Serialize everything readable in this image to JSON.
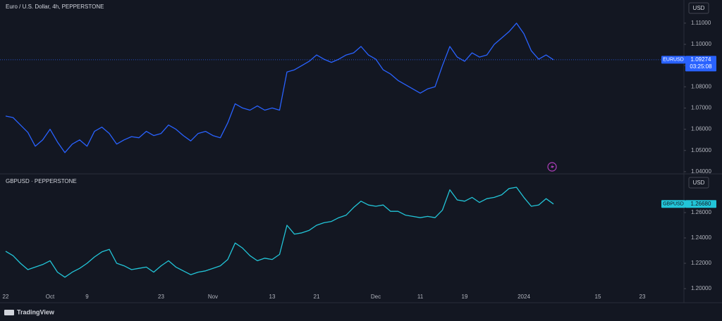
{
  "chart_data": [
    {
      "type": "line",
      "title": "Euro / U.S. Dollar, 4h, PEPPERSTONE",
      "color": "#2962ff",
      "axis_unit": "USD",
      "price_line": true,
      "values": [
        1.0662,
        1.0655,
        1.062,
        1.0585,
        1.052,
        1.055,
        1.06,
        1.054,
        1.049,
        1.053,
        1.055,
        1.052,
        1.059,
        1.061,
        1.058,
        1.053,
        1.055,
        1.0565,
        1.056,
        1.059,
        1.057,
        1.058,
        1.062,
        1.06,
        1.057,
        1.0545,
        1.058,
        1.059,
        1.057,
        1.056,
        1.063,
        1.072,
        1.07,
        1.069,
        1.071,
        1.069,
        1.07,
        1.069,
        1.087,
        1.088,
        1.09,
        1.092,
        1.095,
        1.093,
        1.0915,
        1.093,
        1.095,
        1.096,
        1.099,
        1.095,
        1.093,
        1.088,
        1.086,
        1.083,
        1.081,
        1.079,
        1.077,
        1.079,
        1.08,
        1.09,
        1.099,
        1.094,
        1.092,
        1.096,
        1.094,
        1.095,
        1.1,
        1.103,
        1.106,
        1.11,
        1.105,
        1.097,
        1.093,
        1.095,
        1.09274,
        null,
        null,
        null,
        null,
        null,
        null,
        null,
        null,
        null,
        null,
        null,
        null
      ],
      "ylim": [
        1.0393,
        1.1209
      ],
      "yticks": [
        {
          "value": 1.04,
          "label": "1.04000"
        },
        {
          "value": 1.05,
          "label": "1.05000"
        },
        {
          "value": 1.06,
          "label": "1.06000"
        },
        {
          "value": 1.07,
          "label": "1.07000"
        },
        {
          "value": 1.08,
          "label": "1.08000"
        },
        {
          "value": 1.09,
          "label": "1.09000"
        },
        {
          "value": 1.1,
          "label": "1.10000"
        },
        {
          "value": 1.11,
          "label": "1.11000"
        }
      ],
      "price_tag": {
        "symbol": "EURUSD",
        "value": 1.09274,
        "label": "1.09274",
        "countdown": "03:25:08"
      }
    },
    {
      "type": "line",
      "title": "GBPUSD · PEPPERSTONE",
      "color": "#22c5d8",
      "axis_unit": "USD",
      "price_line": false,
      "categories": [
        "22",
        null,
        null,
        null,
        null,
        null,
        "Oct",
        null,
        null,
        null,
        null,
        "9",
        null,
        null,
        null,
        null,
        null,
        null,
        null,
        null,
        null,
        "23",
        null,
        null,
        null,
        null,
        null,
        null,
        "Nov",
        null,
        null,
        null,
        null,
        null,
        null,
        null,
        "13",
        null,
        null,
        null,
        null,
        null,
        "21",
        null,
        null,
        null,
        null,
        null,
        null,
        null,
        "Dec",
        null,
        null,
        null,
        null,
        null,
        "11",
        null,
        null,
        null,
        null,
        null,
        "19",
        null,
        null,
        null,
        null,
        null,
        null,
        null,
        "2024",
        null,
        null,
        null,
        null,
        null,
        null,
        null,
        null,
        null,
        "15",
        null,
        null,
        null,
        null,
        null,
        "23"
      ],
      "values": [
        1.2295,
        1.226,
        1.22,
        1.215,
        1.217,
        1.219,
        1.222,
        1.213,
        1.209,
        1.213,
        1.216,
        1.22,
        1.225,
        1.229,
        1.231,
        1.22,
        1.218,
        1.215,
        1.216,
        1.217,
        1.213,
        1.218,
        1.222,
        1.217,
        1.214,
        1.211,
        1.213,
        1.214,
        1.216,
        1.218,
        1.223,
        1.236,
        1.232,
        1.226,
        1.222,
        1.224,
        1.223,
        1.227,
        1.25,
        1.243,
        1.244,
        1.246,
        1.25,
        1.252,
        1.253,
        1.256,
        1.258,
        1.264,
        1.269,
        1.266,
        1.265,
        1.266,
        1.261,
        1.261,
        1.258,
        1.257,
        1.256,
        1.257,
        1.256,
        1.262,
        1.278,
        1.27,
        1.269,
        1.272,
        1.268,
        1.271,
        1.272,
        1.274,
        1.279,
        1.28,
        1.272,
        1.265,
        1.266,
        1.271,
        1.2668,
        null,
        null,
        null,
        null,
        null,
        null,
        null,
        null,
        null,
        null,
        null,
        null
      ],
      "ylim": [
        1.1889,
        1.29
      ],
      "yticks": [
        {
          "value": 1.2,
          "label": "1.20000"
        },
        {
          "value": 1.22,
          "label": "1.22000"
        },
        {
          "value": 1.24,
          "label": "1.24000"
        },
        {
          "value": 1.26,
          "label": "1.26000"
        }
      ],
      "price_tag": {
        "symbol": "GBPUSD",
        "value": 1.2668,
        "label": "1.26680"
      }
    }
  ],
  "brand": "TradingView"
}
